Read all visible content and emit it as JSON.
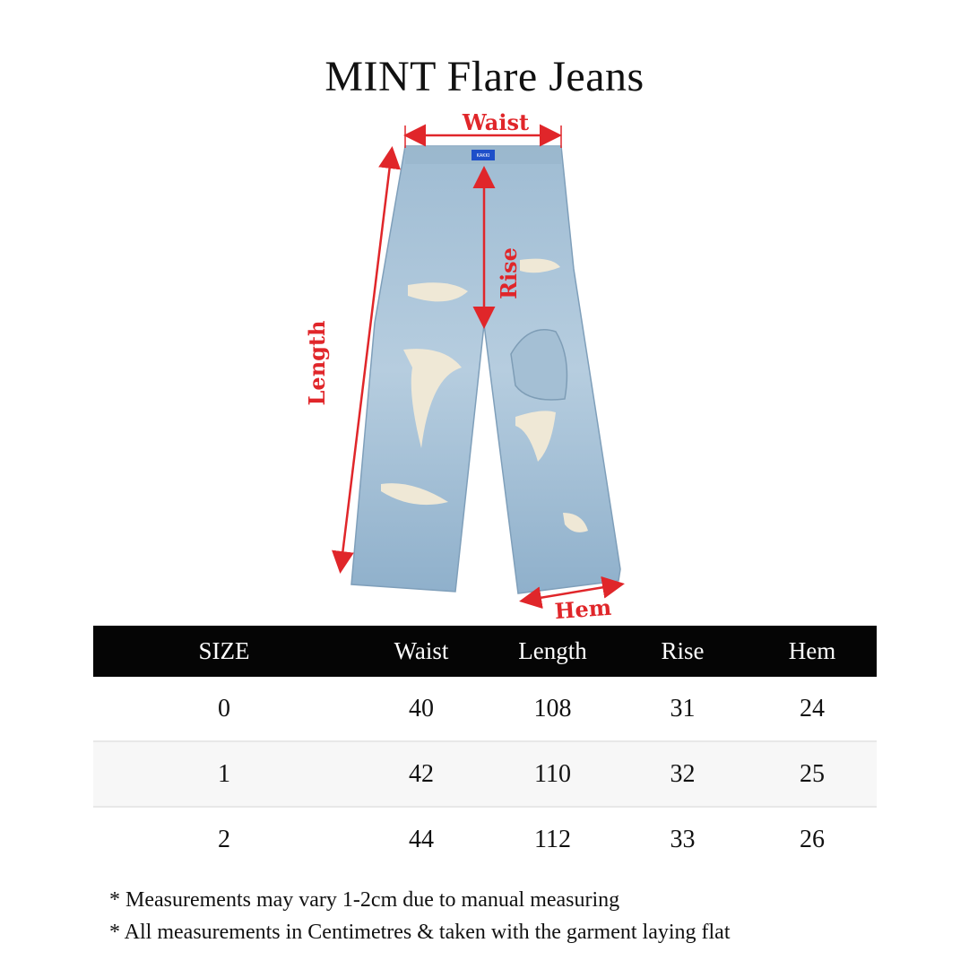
{
  "title": "MINT Flare Jeans",
  "diagram": {
    "labels": {
      "waist": "Waist",
      "rise": "Rise",
      "length": "Length",
      "hem": "Hem"
    },
    "brand_tag": "KAKKI",
    "arrow_color": "#e0262a",
    "denim_color": "#a9c3d8"
  },
  "table": {
    "headers": [
      "SIZE",
      "Waist",
      "Length",
      "Rise",
      "Hem"
    ],
    "rows": [
      [
        "0",
        "40",
        "108",
        "31",
        "24"
      ],
      [
        "1",
        "42",
        "110",
        "32",
        "25"
      ],
      [
        "2",
        "44",
        "112",
        "33",
        "26"
      ]
    ]
  },
  "notes": [
    "* Measurements may vary 1-2cm due to manual measuring",
    "* All measurements in Centimetres & taken with the garment laying flat"
  ]
}
